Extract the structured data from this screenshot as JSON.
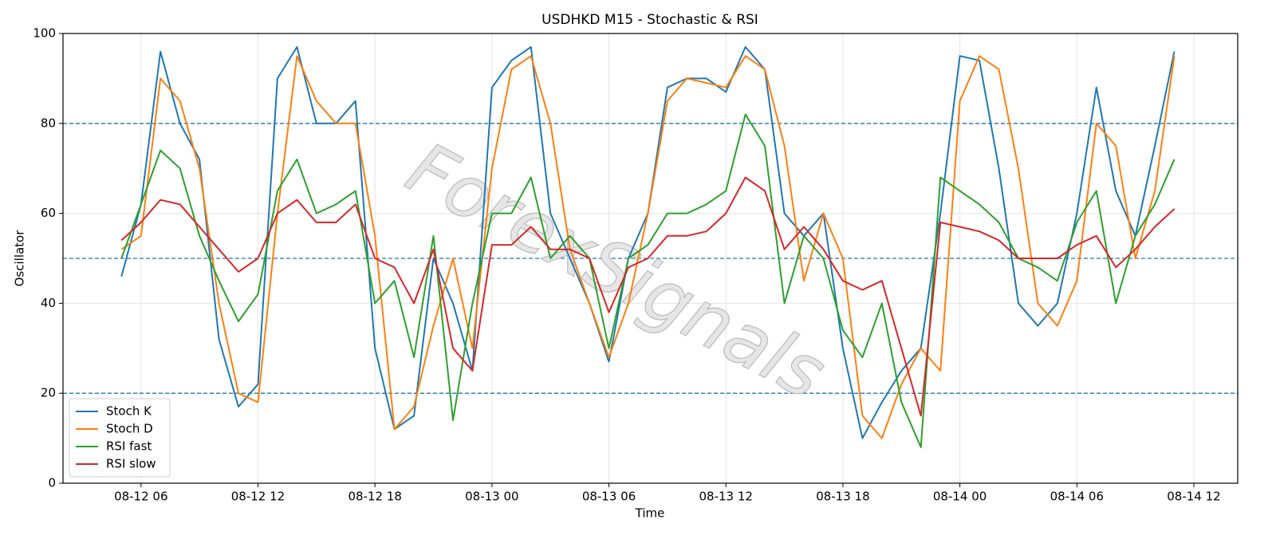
{
  "chart_data": {
    "type": "line",
    "title": "USDHKD M15 - Stochastic & RSI",
    "xlabel": "Time",
    "ylabel": "Oscillator",
    "watermark": "ForexSignals",
    "x": [
      "08-12 05:00",
      "08-12 06:00",
      "08-12 07:00",
      "08-12 08:00",
      "08-12 09:00",
      "08-12 10:00",
      "08-12 11:00",
      "08-12 12:00",
      "08-12 13:00",
      "08-12 14:00",
      "08-12 15:00",
      "08-12 16:00",
      "08-12 17:00",
      "08-12 18:00",
      "08-12 19:00",
      "08-12 20:00",
      "08-12 21:00",
      "08-12 22:00",
      "08-12 23:00",
      "08-13 00:00",
      "08-13 01:00",
      "08-13 02:00",
      "08-13 03:00",
      "08-13 04:00",
      "08-13 05:00",
      "08-13 06:00",
      "08-13 07:00",
      "08-13 08:00",
      "08-13 09:00",
      "08-13 10:00",
      "08-13 11:00",
      "08-13 12:00",
      "08-13 13:00",
      "08-13 14:00",
      "08-13 15:00",
      "08-13 16:00",
      "08-13 17:00",
      "08-13 18:00",
      "08-13 19:00",
      "08-13 20:00",
      "08-13 21:00",
      "08-13 22:00",
      "08-13 23:00",
      "08-14 00:00",
      "08-14 01:00",
      "08-14 02:00",
      "08-14 03:00",
      "08-14 04:00",
      "08-14 05:00",
      "08-14 06:00",
      "08-14 07:00",
      "08-14 08:00",
      "08-14 09:00",
      "08-14 10:00",
      "08-14 11:00"
    ],
    "series": [
      {
        "name": "Stoch K",
        "color": "#1f77b4",
        "values": [
          46,
          62,
          96,
          80,
          72,
          32,
          17,
          22,
          90,
          97,
          80,
          80,
          85,
          30,
          12,
          15,
          50,
          40,
          25,
          88,
          94,
          97,
          60,
          50,
          40,
          27,
          50,
          60,
          88,
          90,
          90,
          87,
          97,
          92,
          60,
          55,
          60,
          30,
          10,
          18,
          25,
          30,
          60,
          95,
          94,
          70,
          40,
          35,
          40,
          60,
          88,
          65,
          55,
          75,
          96
        ]
      },
      {
        "name": "Stoch D",
        "color": "#ff7f0e",
        "values": [
          52,
          55,
          90,
          85,
          70,
          40,
          20,
          18,
          60,
          95,
          85,
          80,
          80,
          55,
          12,
          17,
          35,
          50,
          30,
          70,
          92,
          95,
          80,
          52,
          40,
          28,
          40,
          60,
          85,
          90,
          89,
          88,
          95,
          92,
          75,
          45,
          60,
          50,
          15,
          10,
          22,
          30,
          25,
          85,
          95,
          92,
          70,
          40,
          35,
          45,
          80,
          75,
          50,
          65,
          95
        ]
      },
      {
        "name": "RSI fast",
        "color": "#2ca02c",
        "values": [
          50,
          62,
          74,
          70,
          55,
          45,
          36,
          42,
          65,
          72,
          60,
          62,
          65,
          40,
          45,
          28,
          55,
          14,
          40,
          60,
          60,
          68,
          50,
          55,
          50,
          30,
          50,
          53,
          60,
          60,
          62,
          65,
          82,
          75,
          40,
          55,
          50,
          34,
          28,
          40,
          18,
          8,
          68,
          65,
          62,
          58,
          50,
          48,
          45,
          58,
          65,
          40,
          55,
          62,
          72
        ]
      },
      {
        "name": "RSI slow",
        "color": "#d62728",
        "values": [
          54,
          58,
          63,
          62,
          57,
          52,
          47,
          50,
          60,
          63,
          58,
          58,
          62,
          50,
          48,
          40,
          52,
          30,
          25,
          53,
          53,
          57,
          52,
          52,
          50,
          38,
          48,
          50,
          55,
          55,
          56,
          60,
          68,
          65,
          52,
          57,
          52,
          45,
          43,
          45,
          30,
          15,
          58,
          57,
          56,
          54,
          50,
          50,
          50,
          53,
          55,
          48,
          52,
          57,
          61
        ]
      }
    ],
    "xlim": [
      "08-12 02:00",
      "08-14 14:15"
    ],
    "xticks": [
      {
        "value": "08-12 06:00",
        "label": "08-12 06"
      },
      {
        "value": "08-12 12:00",
        "label": "08-12 12"
      },
      {
        "value": "08-12 18:00",
        "label": "08-12 18"
      },
      {
        "value": "08-13 00:00",
        "label": "08-13 00"
      },
      {
        "value": "08-13 06:00",
        "label": "08-13 06"
      },
      {
        "value": "08-13 12:00",
        "label": "08-13 12"
      },
      {
        "value": "08-13 18:00",
        "label": "08-13 18"
      },
      {
        "value": "08-14 00:00",
        "label": "08-14 00"
      },
      {
        "value": "08-14 06:00",
        "label": "08-14 06"
      },
      {
        "value": "08-14 12:00",
        "label": "08-14 12"
      }
    ],
    "ylim": [
      0,
      100
    ],
    "yticks": [
      0,
      20,
      40,
      60,
      80,
      100
    ],
    "hlines": [
      20,
      50,
      80
    ],
    "hline_color": "#1f77b4",
    "grid": true,
    "legend": "lower left"
  }
}
